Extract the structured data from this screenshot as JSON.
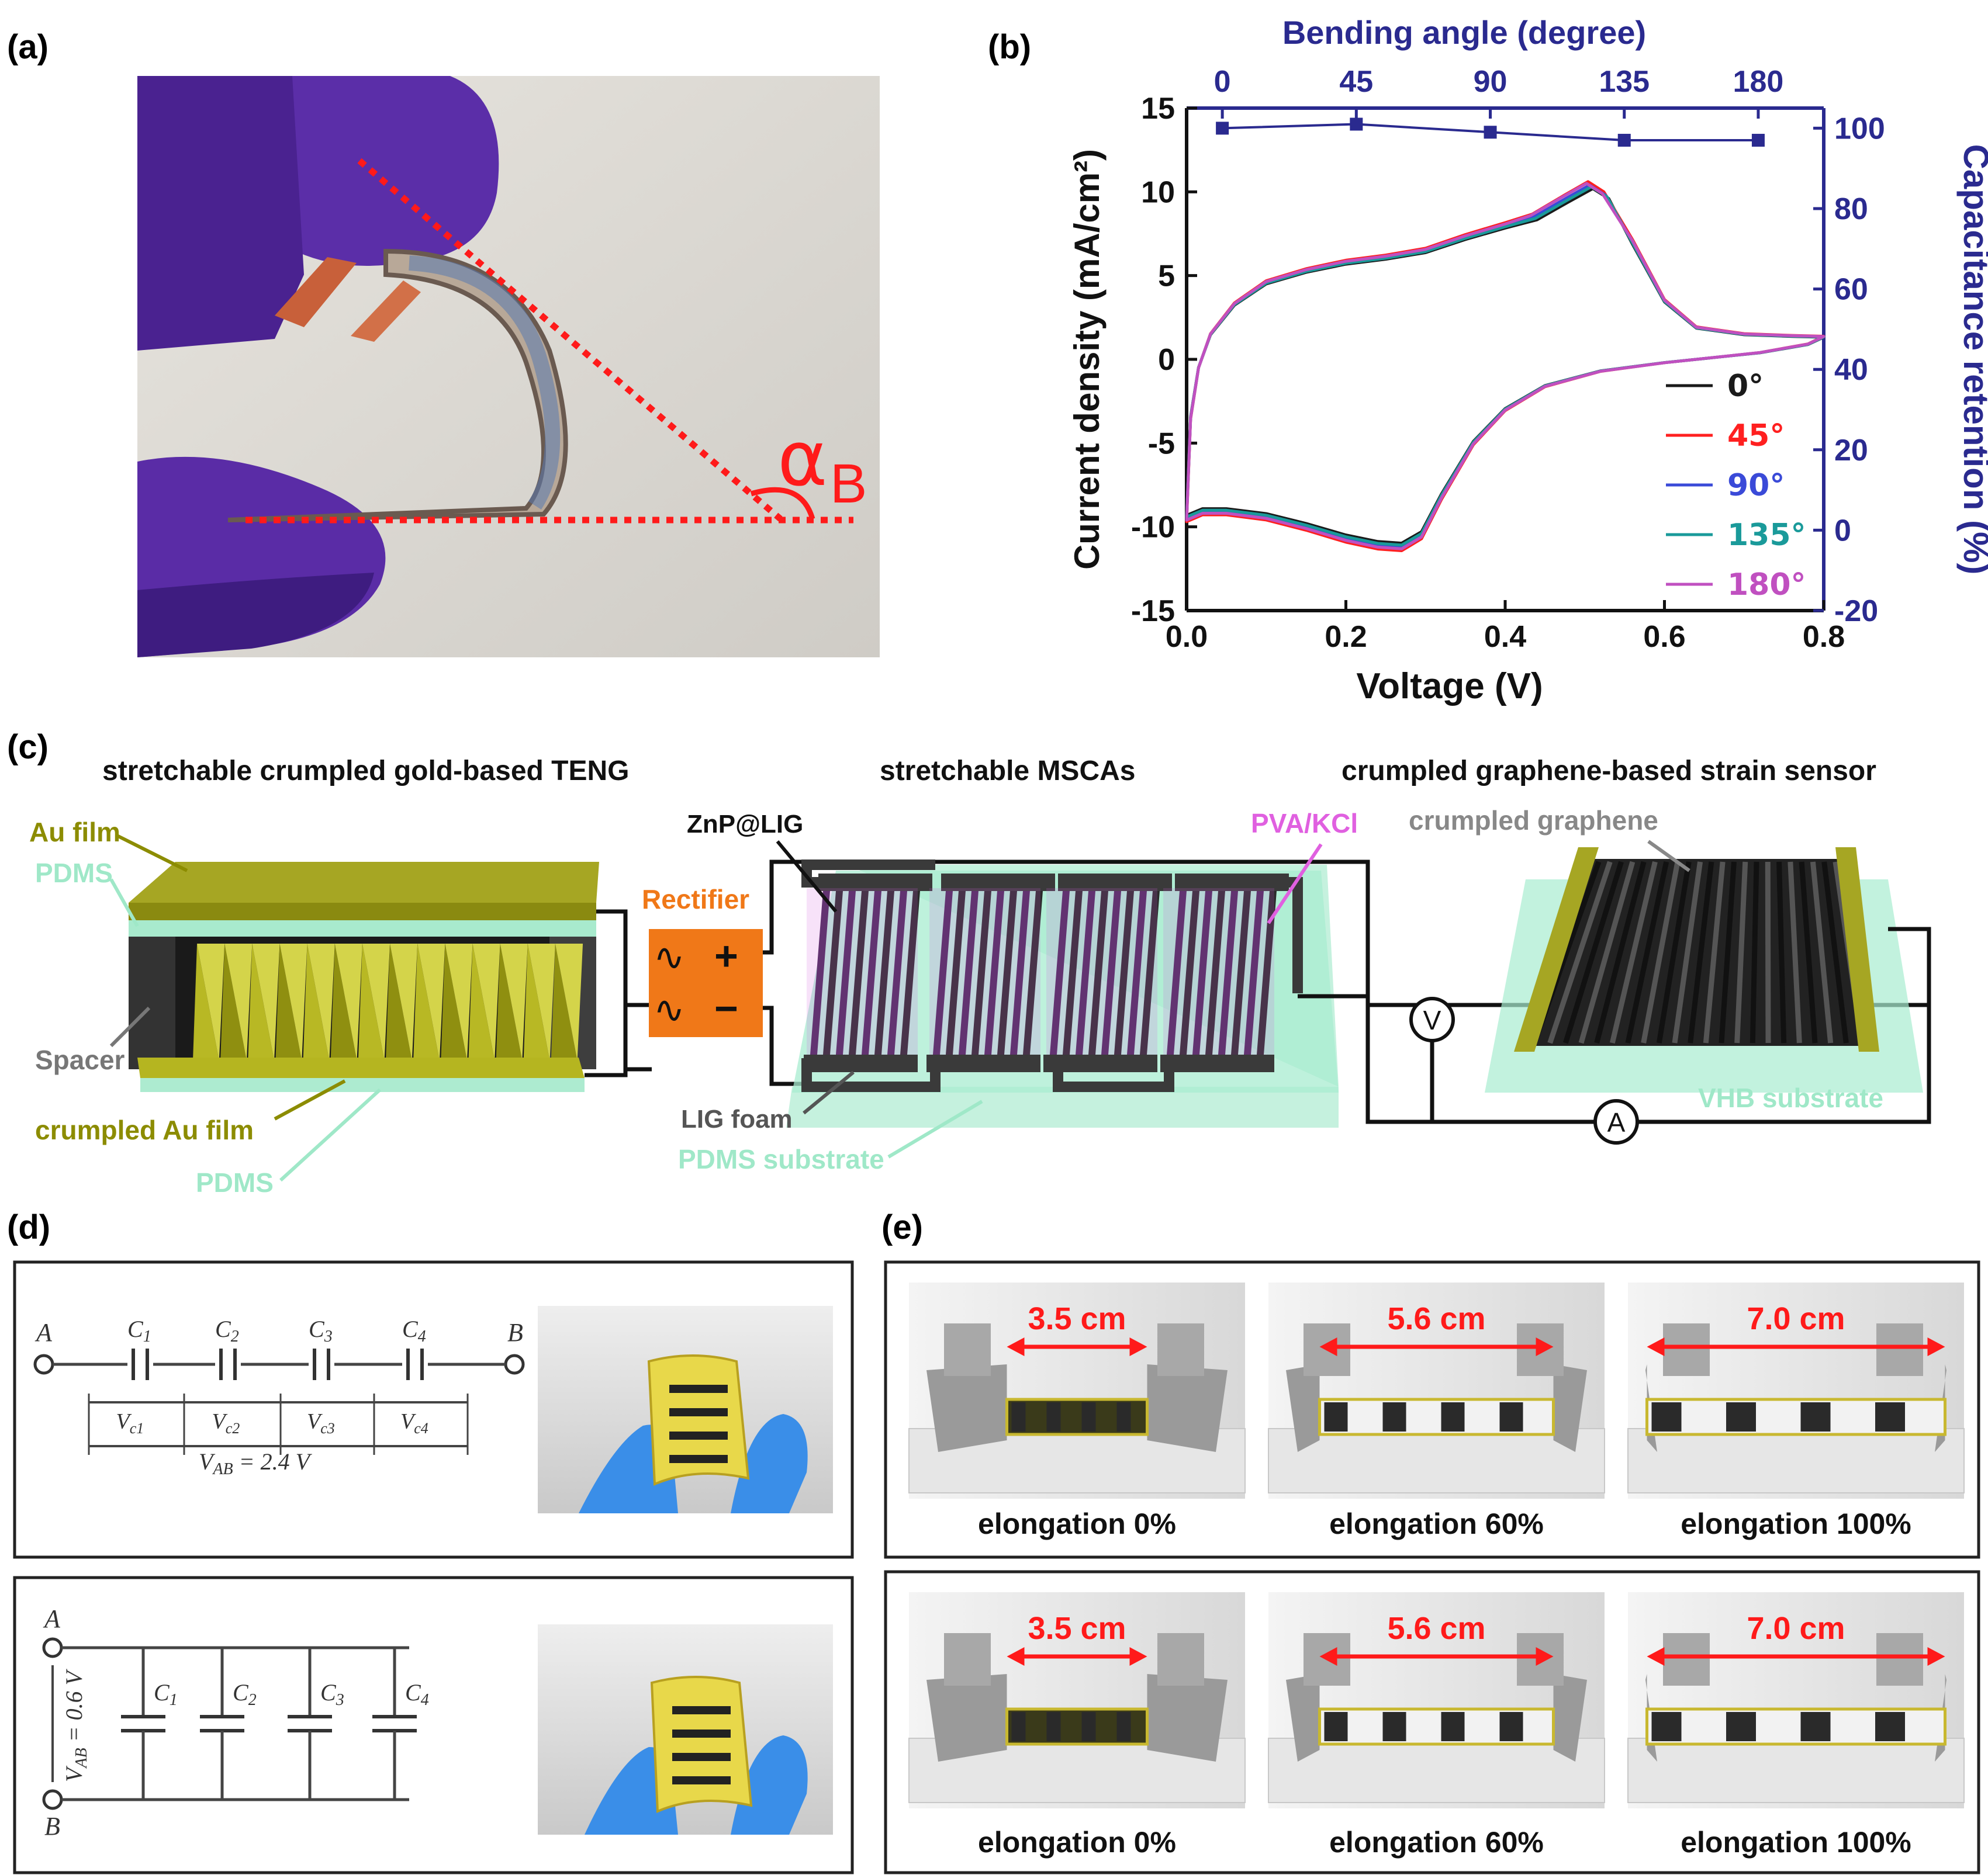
{
  "panel_labels": {
    "a": "(a)",
    "b": "(b)",
    "c": "(c)",
    "d": "(d)",
    "e": "(e)"
  },
  "colors": {
    "axis_blue": "#2a2a8f",
    "red_annot": "#ff1a1a",
    "olive": "#8c8c00",
    "pdms": "#9fe8c8",
    "pink": "#e060e0",
    "rectifier": "#f07818",
    "glove": "#5a2aa8",
    "blue_glove": "#3a8ee8",
    "gold": "#e8d84a"
  },
  "panel_a": {
    "angle_symbol": "α",
    "angle_sub": "B"
  },
  "chart_data": {
    "type": "line",
    "xlabel": "Voltage (V)",
    "ylabel": "Current density (mA/cm²)",
    "ylabel_right": "Capacitance retention (%)",
    "xlabel_top": "Bending angle (degree)",
    "xlim": [
      0.0,
      0.8
    ],
    "ylim": [
      -15,
      15
    ],
    "ylim_right": [
      -20,
      105
    ],
    "xlim_top": [
      -12,
      202
    ],
    "xticks": [
      0.0,
      0.2,
      0.4,
      0.6,
      0.8
    ],
    "xtick_labels": [
      "0.0",
      "0.2",
      "0.4",
      "0.6",
      "0.8"
    ],
    "yticks": [
      -15,
      -10,
      -5,
      0,
      5,
      10,
      15
    ],
    "ytick_labels": [
      "-15",
      "-10",
      "-5",
      "0",
      "5",
      "10",
      "15"
    ],
    "yticks_right": [
      -20,
      0,
      20,
      40,
      60,
      80,
      100
    ],
    "ytick_labels_right": [
      "-20",
      "0",
      "20",
      "40",
      "60",
      "80",
      "100"
    ],
    "xticks_top": [
      0,
      45,
      90,
      135,
      180
    ],
    "xtick_labels_top": [
      "0",
      "45",
      "90",
      "135",
      "180"
    ],
    "legend_position": "bottom-right",
    "cv_series": [
      {
        "name": "0°",
        "color": "#1a1a1a",
        "peak_shift": 0.0,
        "scale": 0.98
      },
      {
        "name": "45°",
        "color": "#ff2020",
        "peak_shift": -0.006,
        "scale": 1.02
      },
      {
        "name": "90°",
        "color": "#3a4ad8",
        "peak_shift": -0.004,
        "scale": 1.0
      },
      {
        "name": "135°",
        "color": "#1a9a9a",
        "peak_shift": -0.002,
        "scale": 0.99
      },
      {
        "name": "180°",
        "color": "#c050c0",
        "peak_shift": -0.008,
        "scale": 1.01
      }
    ],
    "cv_upper": [
      [
        0.0,
        -9.5
      ],
      [
        0.005,
        -3.5
      ],
      [
        0.015,
        -0.5
      ],
      [
        0.03,
        1.5
      ],
      [
        0.06,
        3.3
      ],
      [
        0.1,
        4.6
      ],
      [
        0.15,
        5.3
      ],
      [
        0.2,
        5.8
      ],
      [
        0.25,
        6.1
      ],
      [
        0.3,
        6.5
      ],
      [
        0.35,
        7.3
      ],
      [
        0.4,
        8.0
      ],
      [
        0.44,
        8.5
      ],
      [
        0.48,
        9.6
      ],
      [
        0.51,
        10.4
      ],
      [
        0.53,
        9.8
      ],
      [
        0.56,
        7.0
      ],
      [
        0.6,
        3.5
      ],
      [
        0.64,
        1.9
      ],
      [
        0.7,
        1.5
      ],
      [
        0.76,
        1.4
      ],
      [
        0.8,
        1.35
      ]
    ],
    "cv_lower": [
      [
        0.8,
        1.35
      ],
      [
        0.78,
        0.9
      ],
      [
        0.72,
        0.4
      ],
      [
        0.66,
        0.1
      ],
      [
        0.6,
        -0.2
      ],
      [
        0.52,
        -0.7
      ],
      [
        0.45,
        -1.6
      ],
      [
        0.4,
        -3.0
      ],
      [
        0.36,
        -5.0
      ],
      [
        0.32,
        -8.2
      ],
      [
        0.295,
        -10.5
      ],
      [
        0.27,
        -11.2
      ],
      [
        0.24,
        -11.1
      ],
      [
        0.2,
        -10.7
      ],
      [
        0.15,
        -10.0
      ],
      [
        0.1,
        -9.4
      ],
      [
        0.05,
        -9.1
      ],
      [
        0.02,
        -9.1
      ],
      [
        0.0,
        -9.5
      ]
    ],
    "retention_series": {
      "name": "Capacitance retention",
      "color": "#2a2a8f",
      "x": [
        0,
        45,
        90,
        135,
        180
      ],
      "y": [
        100,
        101,
        99,
        97,
        97
      ]
    }
  },
  "panel_c": {
    "title_teng": "stretchable crumpled gold-based TENG",
    "title_mscas": "stretchable MSCAs",
    "title_sensor": "crumpled graphene-based strain sensor",
    "au_film": "Au film",
    "pdms_top": "PDMS",
    "spacer": "Spacer",
    "crumpled_au": "crumpled Au film",
    "pdms_bottom": "PDMS",
    "rectifier": "Rectifier",
    "rect_plus": "+",
    "rect_minus": "−",
    "rect_wave": "∿",
    "znp": "ZnP@LIG",
    "lig_foam": "LIG foam",
    "pdms_substrate": "PDMS substrate",
    "pva": "PVA/KCl",
    "crumpled_graphene": "crumpled graphene",
    "vhb": "VHB substrate",
    "voltmeter": "V",
    "ammeter": "A"
  },
  "panel_d": {
    "node_a": "A",
    "node_b": "B",
    "caps": [
      "C",
      "C",
      "C",
      "C"
    ],
    "cap_subs": [
      "1",
      "2",
      "3",
      "4"
    ],
    "vc": [
      "V",
      "V",
      "V",
      "V"
    ],
    "vc_subs": [
      "c1",
      "c2",
      "c3",
      "c4"
    ],
    "vab_series_v": "V",
    "vab_series_sub": "AB",
    "vab_series_eq": " = 2.4 V",
    "vab_parallel_v": "V",
    "vab_parallel_sub": "AB",
    "vab_parallel_eq": " = 0.6 V"
  },
  "panel_e": {
    "row1": [
      {
        "length": "3.5 cm",
        "caption": "elongation 0%"
      },
      {
        "length": "5.6 cm",
        "caption": "elongation 60%"
      },
      {
        "length": "7.0 cm",
        "caption": "elongation 100%"
      }
    ],
    "row2": [
      {
        "length": "3.5 cm",
        "caption": "elongation 0%"
      },
      {
        "length": "5.6 cm",
        "caption": "elongation 60%"
      },
      {
        "length": "7.0 cm",
        "caption": "elongation 100%"
      }
    ]
  }
}
